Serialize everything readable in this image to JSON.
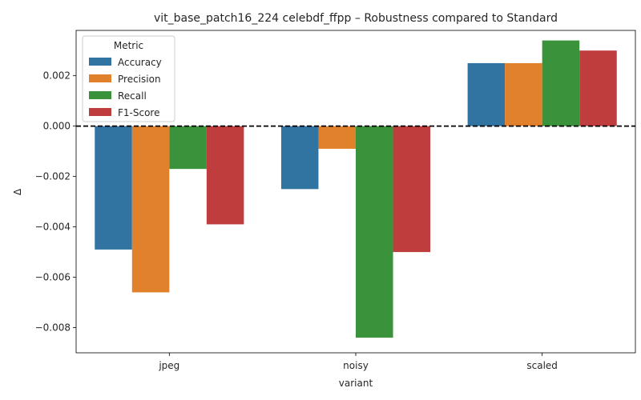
{
  "chart_data": {
    "type": "bar",
    "title": "vit_base_patch16_224 celebdf_ffpp – Robustness compared to Standard",
    "xlabel": "variant",
    "ylabel": "Δ",
    "categories": [
      "jpeg",
      "noisy",
      "scaled"
    ],
    "series": [
      {
        "name": "Accuracy",
        "color": "#3274a1",
        "values": [
          -0.0049,
          -0.0025,
          0.0025
        ]
      },
      {
        "name": "Precision",
        "color": "#e1812c",
        "values": [
          -0.0066,
          -0.0009,
          0.0025
        ]
      },
      {
        "name": "Recall",
        "color": "#3a923a",
        "values": [
          -0.0017,
          -0.0084,
          0.0034
        ]
      },
      {
        "name": "F1-Score",
        "color": "#c03d3e",
        "values": [
          -0.0039,
          -0.005,
          0.003
        ]
      }
    ],
    "ylim": [
      -0.009,
      0.0038
    ],
    "yticks": [
      -0.008,
      -0.006,
      -0.004,
      -0.002,
      0.0,
      0.002
    ],
    "ytick_labels": [
      "−0.008",
      "−0.006",
      "−0.004",
      "−0.002",
      "0.000",
      "0.002"
    ],
    "legend": {
      "title": "Metric",
      "position": "top-left"
    },
    "reference_line": {
      "y": 0,
      "style": "dashed",
      "color": "#000000"
    },
    "grid": false
  }
}
